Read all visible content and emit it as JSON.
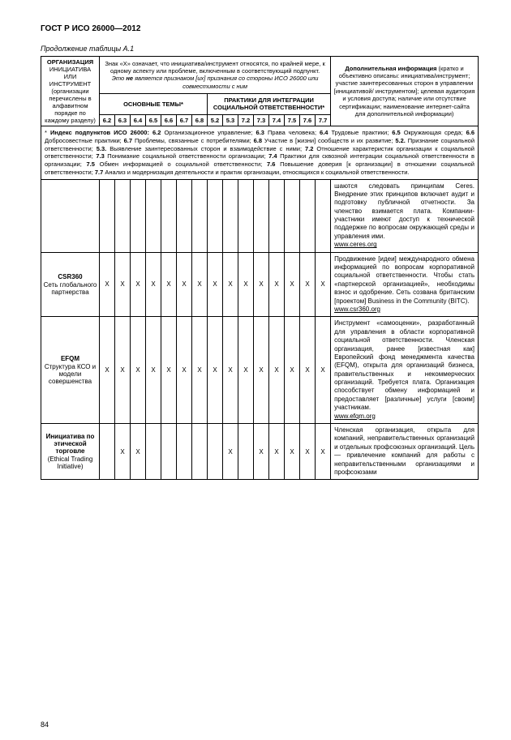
{
  "doc_title": "ГОСТ Р ИСО 26000—2012",
  "table_caption": "Продолжение таблицы А.1",
  "header": {
    "org": "ОРГАНИЗАЦИЯ ИНИЦИАТИВА ИЛИ ИНСТРУМЕНТ (организации перечислены в алфавитном порядке по каждому разделу)",
    "znak": "Знак «X» означает, что инициатива/инструмент относятся, по крайней мере, к одному аспекту или проблеме, включенным в соответствующий подпункт. Это не является признаком [их] признания со стороны ИСО 26000 или совместимости с ним",
    "dop": "Дополнительная информация (кратко и объективно описаны: инициатива/инструмент; участие заинтересованных сторон в управлении [инициативой/ инструментом]; целевая аудитория и условия доступа; наличие или отсутствие сертификации; наименование интернет-сайта для дополнительной информации)",
    "main_topics": "ОСНОВНЫЕ ТЕМЫ*",
    "practices": "ПРАКТИКИ ДЛЯ ИНТЕГРАЦИИ СОЦИАЛЬНОЙ ОТВЕТСТВЕННОСТИ*",
    "cols_main": [
      "6.2",
      "6.3",
      "6.4",
      "6.5",
      "6.6",
      "6.7",
      "6.8"
    ],
    "cols_prac": [
      "5.2",
      "5.3",
      "7.2",
      "7.3",
      "7.4",
      "7.5",
      "7.6",
      "7.7"
    ]
  },
  "index_note": "* Индекс подпунктов ИСО 26000: 6.2 Организационное управление; 6.3 Права человека; 6.4 Трудовые практики; 6.5 Окружающая среда; 6.6 Добросовестные практики; 6.7 Проблемы, связанные с потребителями; 6.8 Участие в [жизни] сообществ и их развитие; 5.2. Признание социальной ответственности; 5.3. Выявление заинтересованных сторон и взаимодействие с ними; 7.2 Отношение характеристик организации к социальной ответственности; 7.3 Понимание социальной ответственности организации; 7.4 Практики для сквозной интеграции социальной ответственности в организации; 7.5 Обмен информацией о социальной ответственности; 7.6 Повышение доверия [к организации] в отношении социальной ответственности; 7.7 Анализ и модернизация деятельности и практик организации, относящихся к социальной ответственности.",
  "rows": [
    {
      "org": "",
      "x": [
        "",
        "",
        "",
        "",
        "",
        "",
        "",
        "",
        "",
        "",
        "",
        "",
        "",
        "",
        ""
      ],
      "desc": "шаются следовать принципам Ceres. Внедрение этих принципов включает аудит и подготовку публичной отчетности. За членство взимается плата. Компании-участники имеют доступ к технической поддержке по вопросам окружающей среды и управления ими.",
      "link": "www.ceres.org"
    },
    {
      "org_bold": "CSR360",
      "org_rest": "Сеть глобального партнерства",
      "x": [
        "X",
        "X",
        "X",
        "X",
        "X",
        "X",
        "X",
        "X",
        "X",
        "X",
        "X",
        "X",
        "X",
        "X",
        "X"
      ],
      "desc": "Продвижение [идеи] международного обмена информацией по вопросам корпоративной социальной ответственности. Чтобы стать «партнерской организацией», необходимы взнос и одобрение. Сеть созвана британским [проектом] Business in the Community (BITC).",
      "link": "www.csr360.org"
    },
    {
      "org_bold": "EFQM",
      "org_rest": "Структура КСО и модели совершенства",
      "x": [
        "X",
        "X",
        "X",
        "X",
        "X",
        "X",
        "X",
        "X",
        "X",
        "X",
        "X",
        "X",
        "X",
        "X",
        "X"
      ],
      "desc": "Инструмент «самооценки», разработанный для управления в области корпоративной социальной ответственности. Членская организация, ранее [известная как] Европейский фонд менеджмента качества (EFQM), открыта для организаций бизнеса, правительственных и некоммерческих организаций. Требуется плата. Организация способствует обмену информацией и предоставляет [различные] услуги [своим] участникам.",
      "link": "www.efqm.org"
    },
    {
      "org_bold": "Инициатива по этической торговле",
      "org_rest": "(Ethical Trading Initiative)",
      "x": [
        "",
        "X",
        "X",
        "",
        "",
        "",
        "",
        "",
        "X",
        "",
        "X",
        "X",
        "X",
        "X",
        "X"
      ],
      "desc": "Членская организация, открыта для компаний, неправительственных организаций и отдельных профсоюзных организаций. Цель — привлечение компаний для работы с неправительственными организациями и профсоюзами",
      "link": ""
    }
  ],
  "page_num": "84"
}
